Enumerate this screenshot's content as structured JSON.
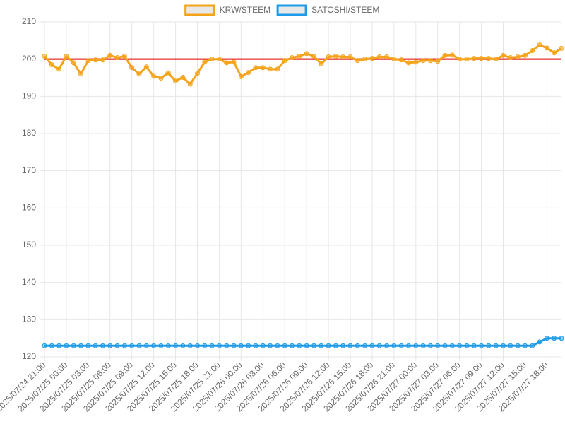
{
  "chart_data": {
    "type": "line",
    "categories": [
      "2025/07/24 21:00",
      null,
      null,
      "2025/07/25 00:00",
      null,
      null,
      "2025/07/25 03:00",
      null,
      null,
      "2025/07/25 06:00",
      null,
      null,
      "2025/07/25 09:00",
      null,
      null,
      "2025/07/25 12:00",
      null,
      null,
      "2025/07/25 15:00",
      null,
      null,
      "2025/07/25 18:00",
      null,
      null,
      "2025/07/25 21:00",
      null,
      null,
      "2025/07/26 00:00",
      null,
      null,
      "2025/07/26 03:00",
      null,
      null,
      "2025/07/26 06:00",
      null,
      null,
      "2025/07/26 09:00",
      null,
      null,
      "2025/07/26 12:00",
      null,
      null,
      "2025/07/26 15:00",
      null,
      null,
      "2025/07/26 18:00",
      null,
      null,
      "2025/07/26 21:00",
      null,
      null,
      "2025/07/27 00:00",
      null,
      null,
      "2025/07/27 03:00",
      null,
      null,
      "2025/07/27 06:00",
      null,
      null,
      "2025/07/27 09:00",
      null,
      null,
      "2025/07/27 12:00",
      null,
      null,
      "2025/07/27 15:00",
      null,
      null,
      "2025/07/27 18:00",
      null,
      null
    ],
    "series": [
      {
        "name": "KRW/STEEM",
        "color": "#f5a31a",
        "values": [
          200.8,
          198.5,
          197.3,
          200.8,
          199,
          196,
          199.6,
          199.8,
          199.8,
          201,
          200.4,
          200.8,
          197.7,
          196,
          197.9,
          195.4,
          194.9,
          196.3,
          194.1,
          195.1,
          193.3,
          196.2,
          199.2,
          200,
          200,
          199,
          199.2,
          195.3,
          196.4,
          197.7,
          197.7,
          197.3,
          197.3,
          199.6,
          200.4,
          200.8,
          201.5,
          200.8,
          198.7,
          200.6,
          200.8,
          200.6,
          200.6,
          199.6,
          200,
          200.2,
          200.6,
          200.6,
          200,
          199.8,
          199,
          199.2,
          199.6,
          199.6,
          199.4,
          201,
          201.1,
          200,
          200,
          200.2,
          200.2,
          200.2,
          200,
          201,
          200.4,
          200.6,
          201,
          202.3,
          203.8,
          203,
          201.7,
          202.9
        ]
      },
      {
        "name": "SATOSHI/STEEM",
        "color": "#1e9be8",
        "values": [
          123,
          123,
          123,
          123,
          123,
          123,
          123,
          123,
          123,
          123,
          123,
          123,
          123,
          123,
          123,
          123,
          123,
          123,
          123,
          123,
          123,
          123,
          123,
          123,
          123,
          123,
          123,
          123,
          123,
          123,
          123,
          123,
          123,
          123,
          123,
          123,
          123,
          123,
          123,
          123,
          123,
          123,
          123,
          123,
          123,
          123,
          123,
          123,
          123,
          123,
          123,
          123,
          123,
          123,
          123,
          123,
          123,
          123,
          123,
          123,
          123,
          123,
          123,
          123,
          123,
          123,
          123,
          123,
          124,
          125,
          125,
          125
        ]
      }
    ],
    "ylim": [
      120,
      210
    ],
    "yticks": [
      120,
      130,
      140,
      150,
      160,
      170,
      180,
      190,
      200,
      210
    ],
    "grid": true,
    "legend": "top",
    "reference_line": {
      "value": 200,
      "color": "#e00000"
    }
  }
}
